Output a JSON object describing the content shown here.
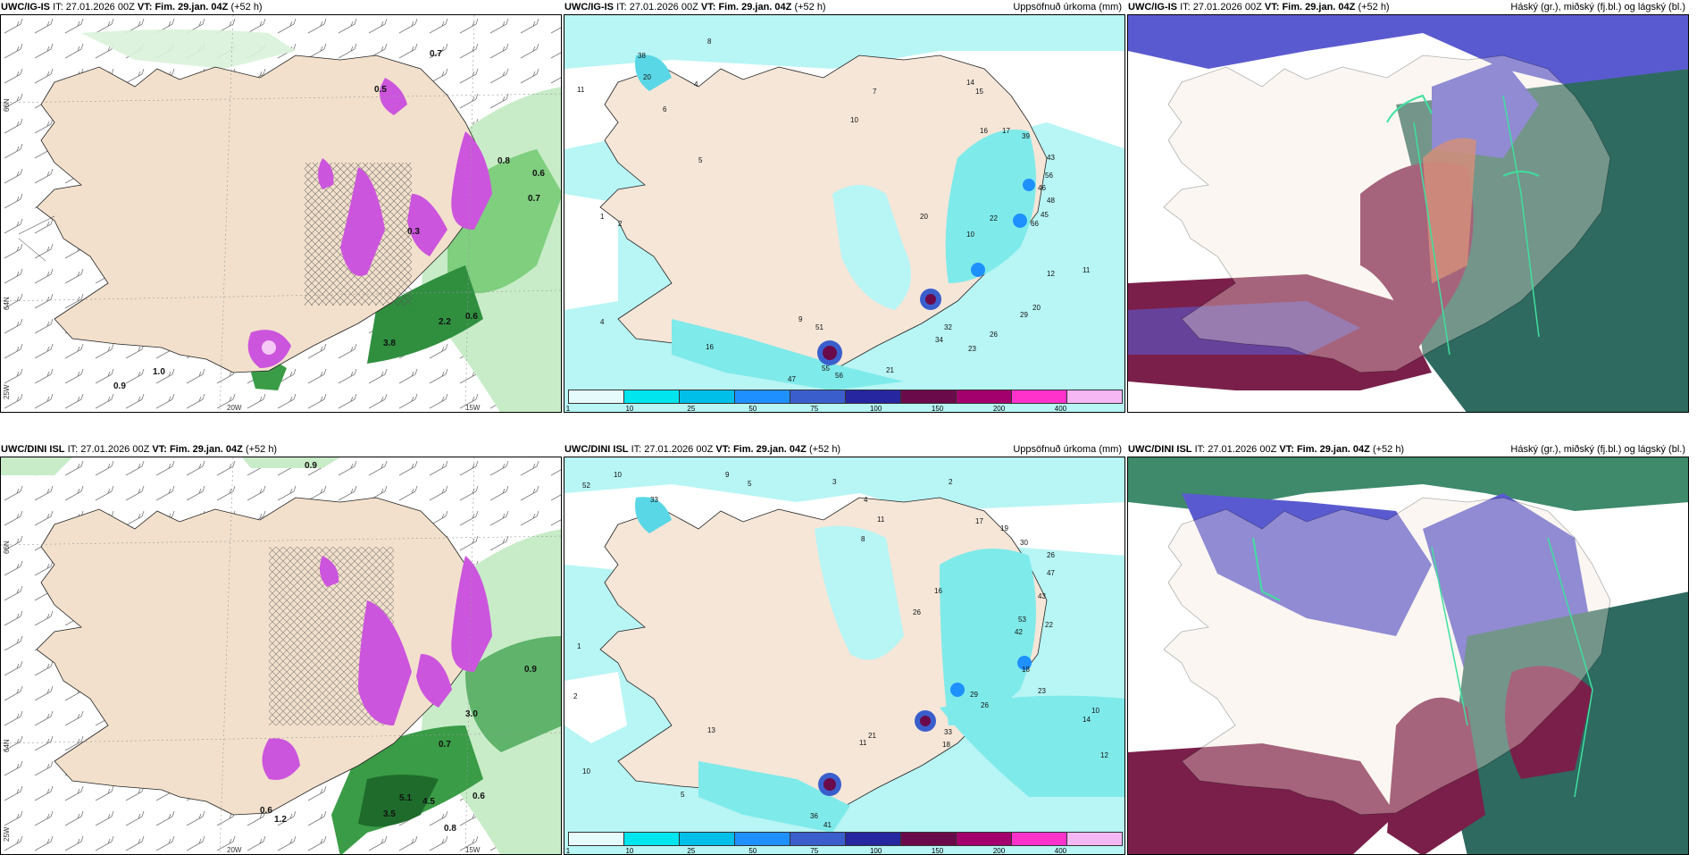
{
  "panels": [
    {
      "id": "igis-1",
      "model": "UWC/IG-IS",
      "it_label": "IT:",
      "it_value": "27.01.2026 00Z",
      "vt_label": "VT:",
      "vt_value": "Fim. 29.jan. 04Z",
      "lead": "(+52 h)",
      "title": "",
      "lat_labels": [
        "66N",
        "64N",
        "25W"
      ],
      "lon_labels": [
        "20W",
        "15W"
      ]
    },
    {
      "id": "igis-2",
      "model": "UWC/IG-IS",
      "it_label": "IT:",
      "it_value": "27.01.2026 00Z",
      "vt_label": "VT:",
      "vt_value": "Fim. 29.jan. 04Z",
      "lead": "(+52 h)",
      "title": "Uppsöfnuð úrkoma (mm)"
    },
    {
      "id": "igis-3",
      "model": "UWC/IG-IS",
      "it_label": "IT:",
      "it_value": "27.01.2026 00Z",
      "vt_label": "VT:",
      "vt_value": "Fim. 29.jan. 04Z",
      "lead": "(+52 h)",
      "title": "Háský (gr.), miðský (fj.bl.) og lágský (bl.)"
    },
    {
      "id": "dini-1",
      "model": "UWC/DINI ISL",
      "it_label": "IT:",
      "it_value": "27.01.2026 00Z",
      "vt_label": "VT:",
      "vt_value": "Fim. 29.jan. 04Z",
      "lead": "(+52 h)",
      "title": "",
      "lat_labels": [
        "66N",
        "64N",
        "25W"
      ],
      "lon_labels": [
        "20W",
        "15W"
      ]
    },
    {
      "id": "dini-2",
      "model": "UWC/DINI ISL",
      "it_label": "IT:",
      "it_value": "27.01.2026 00Z",
      "vt_label": "VT:",
      "vt_value": "Fim. 29.jan. 04Z",
      "lead": "(+52 h)",
      "title": "Uppsöfnuð úrkoma (mm)"
    },
    {
      "id": "dini-3",
      "model": "UWC/DINI ISL",
      "it_label": "IT:",
      "it_value": "27.01.2026 00Z",
      "vt_label": "VT:",
      "vt_value": "Fim. 29.jan. 04Z",
      "lead": "(+52 h)",
      "title": "Háský (gr.), miðský (fj.bl.) og lágský (bl.)"
    }
  ],
  "colorbar": {
    "ticks": [
      "1",
      "10",
      "25",
      "50",
      "75",
      "100",
      "150",
      "200",
      "400"
    ],
    "colors": [
      "#e6fbfb",
      "#00e5ee",
      "#00bfe8",
      "#1e90ff",
      "#3a5fcd",
      "#2626a0",
      "#6b0a4a",
      "#a3006e",
      "#ff33cc",
      "#f5b8f5"
    ]
  },
  "precip_labels_top": [
    "8",
    "4",
    "10",
    "7",
    "14",
    "15",
    "16",
    "17",
    "39",
    "43",
    "56",
    "46",
    "48",
    "66",
    "45",
    "22",
    "20",
    "10",
    "9",
    "32",
    "34",
    "23",
    "26",
    "29",
    "20",
    "11",
    "12",
    "51",
    "55",
    "56",
    "47",
    "21",
    "11",
    "16",
    "5",
    "4",
    "1",
    "2",
    "38",
    "20",
    "6"
  ],
  "precip_labels_bottom": [
    "10",
    "9",
    "5",
    "3",
    "2",
    "4",
    "8",
    "11",
    "17",
    "19",
    "30",
    "26",
    "47",
    "43",
    "53",
    "42",
    "22",
    "16",
    "26",
    "18",
    "23",
    "29",
    "26",
    "33",
    "18",
    "14",
    "12",
    "10",
    "36",
    "41",
    "21",
    "11",
    "1",
    "2",
    "5",
    "10",
    "52",
    "33",
    "13"
  ],
  "wind_labels_top": [
    "0.7",
    "0.5",
    "1.0",
    "0.9",
    "2.2",
    "0.6",
    "3.8",
    "0.8",
    "0.3",
    "0.6",
    "0.7"
  ],
  "wind_labels_bottom": [
    "0.9",
    "0.6",
    "1.2",
    "3.5",
    "5.1",
    "4.5",
    "0.6",
    "0.8",
    "0.9",
    "3.0",
    "0.7"
  ]
}
